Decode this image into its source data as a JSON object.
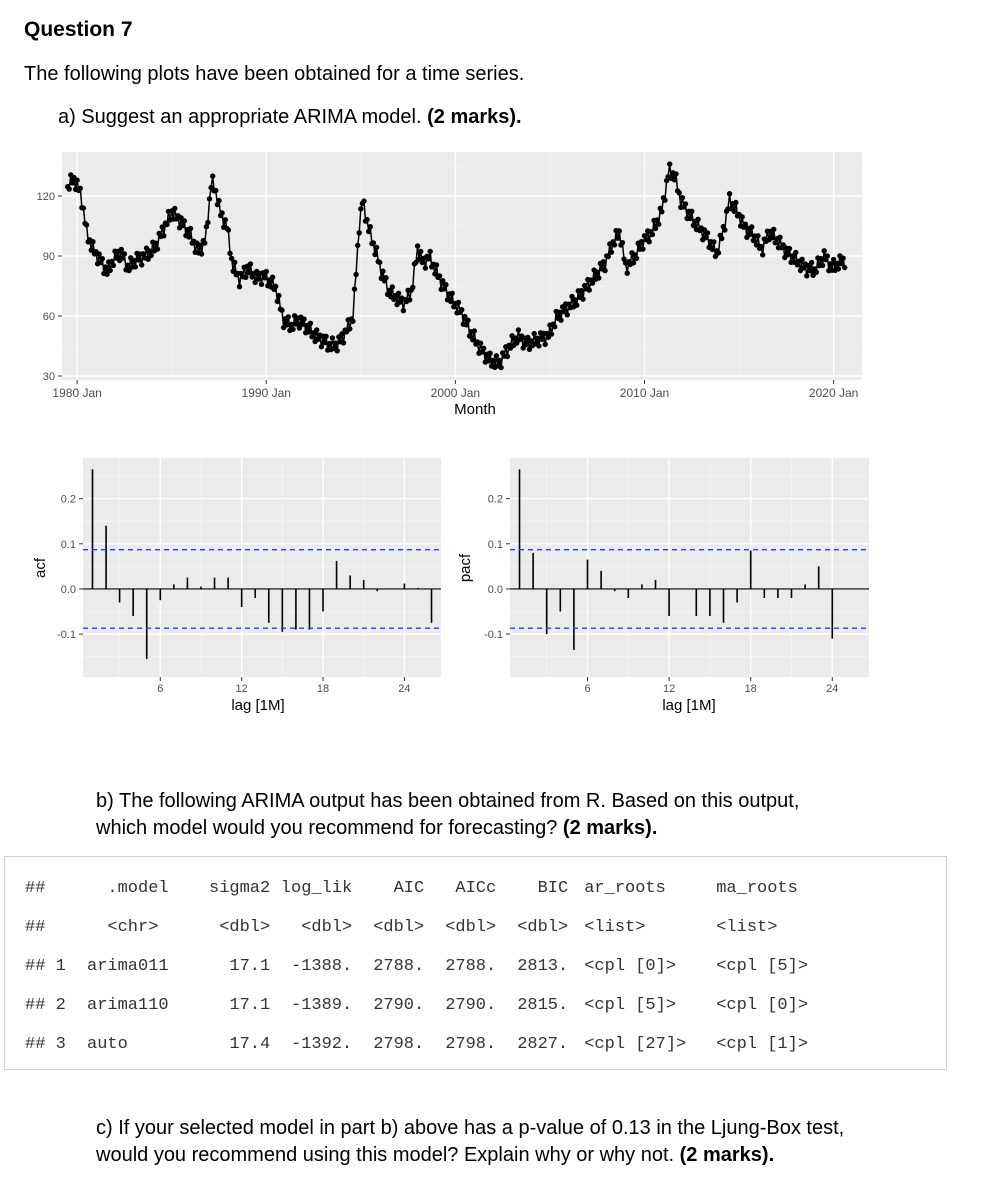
{
  "question": {
    "title": "Question 7",
    "intro": "The following plots have been obtained for a time series.",
    "part_a": {
      "prefix": "a)  Suggest an appropriate ARIMA model. ",
      "marks": "(2 marks)",
      "suffix": "."
    },
    "part_b": {
      "line1": "b) The following ARIMA output has been obtained from R. Based on this output,",
      "line2_text": "which model would you recommend for forecasting? ",
      "line2_marks": "(2 marks)",
      "line2_suffix": "."
    },
    "part_c": {
      "line1": "c) If your selected model in part b) above has a p-value of 0.13 in the Ljung-Box test,",
      "line2_text": "would you recommend using this model? Explain why or why not. ",
      "line2_marks": "(2 marks)",
      "line2_suffix": "."
    }
  },
  "r_output": {
    "rows": [
      [
        "##",
        "  .model",
        "sigma2",
        "log_lik",
        "AIC",
        "AICc",
        "BIC",
        "ar_roots",
        "ma_roots"
      ],
      [
        "##",
        "  <chr>",
        "<dbl>",
        "<dbl>",
        "<dbl>",
        "<dbl>",
        "<dbl>",
        "<list>",
        "<list>"
      ],
      [
        "## 1",
        "arima011",
        "17.1",
        "-1388.",
        "2788.",
        "2788.",
        "2813.",
        "<cpl [0]>",
        "<cpl [5]>"
      ],
      [
        "## 2",
        "arima110",
        "17.1",
        "-1389.",
        "2790.",
        "2790.",
        "2815.",
        "<cpl [5]>",
        "<cpl [0]>"
      ],
      [
        "## 3",
        "auto",
        "17.4",
        "-1392.",
        "2798.",
        "2798.",
        "2827.",
        "<cpl [27]>",
        "<cpl [1]>"
      ]
    ]
  },
  "chart_data": [
    {
      "type": "line",
      "xlabel": "Month",
      "ylabel": "",
      "x_ticks": [
        "1980 Jan",
        "1990 Jan",
        "2000 Jan",
        "2010 Jan",
        "2020 Jan"
      ],
      "y_ticks": [
        30,
        60,
        90,
        120
      ],
      "ylim": [
        28,
        142
      ],
      "xlim": [
        1979.2,
        2021.5
      ],
      "grid": true,
      "markers": true,
      "series_anchors": [
        [
          1979.5,
          124
        ],
        [
          1979.8,
          129
        ],
        [
          1980.2,
          121
        ],
        [
          1980.5,
          102
        ],
        [
          1980.8,
          94
        ],
        [
          1981.2,
          88
        ],
        [
          1981.6,
          82
        ],
        [
          1981.9,
          88
        ],
        [
          1982.3,
          92
        ],
        [
          1982.7,
          84
        ],
        [
          1983.1,
          88
        ],
        [
          1983.6,
          90
        ],
        [
          1984.1,
          94
        ],
        [
          1984.6,
          104
        ],
        [
          1985.0,
          112
        ],
        [
          1985.5,
          107
        ],
        [
          1986.0,
          100
        ],
        [
          1986.4,
          92
        ],
        [
          1986.8,
          98
        ],
        [
          1987.1,
          128
        ],
        [
          1987.4,
          120
        ],
        [
          1987.6,
          110
        ],
        [
          1987.9,
          106
        ],
        [
          1988.2,
          86
        ],
        [
          1988.6,
          78
        ],
        [
          1989.0,
          84
        ],
        [
          1989.5,
          79
        ],
        [
          1989.9,
          80
        ],
        [
          1990.2,
          77
        ],
        [
          1990.5,
          74
        ],
        [
          1990.9,
          58
        ],
        [
          1991.3,
          55
        ],
        [
          1991.7,
          58
        ],
        [
          1992.1,
          55
        ],
        [
          1992.6,
          50
        ],
        [
          1993.0,
          48
        ],
        [
          1993.4,
          45
        ],
        [
          1993.8,
          46
        ],
        [
          1994.2,
          52
        ],
        [
          1994.6,
          60
        ],
        [
          1994.9,
          104
        ],
        [
          1995.1,
          118
        ],
        [
          1995.4,
          104
        ],
        [
          1995.8,
          92
        ],
        [
          1996.1,
          82
        ],
        [
          1996.5,
          72
        ],
        [
          1996.9,
          69
        ],
        [
          1997.3,
          66
        ],
        [
          1997.7,
          73
        ],
        [
          1998.0,
          94
        ],
        [
          1998.3,
          86
        ],
        [
          1998.6,
          90
        ],
        [
          1998.9,
          84
        ],
        [
          1999.3,
          76
        ],
        [
          1999.8,
          68
        ],
        [
          2000.3,
          62
        ],
        [
          2000.8,
          52
        ],
        [
          2001.3,
          44
        ],
        [
          2001.8,
          38
        ],
        [
          2002.3,
          36
        ],
        [
          2002.8,
          44
        ],
        [
          2003.3,
          50
        ],
        [
          2003.8,
          46
        ],
        [
          2004.3,
          48
        ],
        [
          2004.9,
          50
        ],
        [
          2005.4,
          60
        ],
        [
          2005.9,
          64
        ],
        [
          2006.4,
          68
        ],
        [
          2006.9,
          74
        ],
        [
          2007.4,
          80
        ],
        [
          2007.9,
          86
        ],
        [
          2008.3,
          96
        ],
        [
          2008.7,
          102
        ],
        [
          2009.0,
          84
        ],
        [
          2009.5,
          90
        ],
        [
          2009.9,
          97
        ],
        [
          2010.4,
          102
        ],
        [
          2010.9,
          112
        ],
        [
          2011.3,
          133
        ],
        [
          2011.6,
          130
        ],
        [
          2011.9,
          118
        ],
        [
          2012.4,
          110
        ],
        [
          2012.9,
          104
        ],
        [
          2013.4,
          98
        ],
        [
          2013.8,
          91
        ],
        [
          2014.1,
          100
        ],
        [
          2014.5,
          118
        ],
        [
          2014.9,
          112
        ],
        [
          2015.3,
          104
        ],
        [
          2015.8,
          100
        ],
        [
          2016.2,
          93
        ],
        [
          2016.6,
          102
        ],
        [
          2017.0,
          98
        ],
        [
          2017.5,
          92
        ],
        [
          2018.0,
          88
        ],
        [
          2018.5,
          84
        ],
        [
          2019.0,
          83
        ],
        [
          2019.5,
          90
        ],
        [
          2019.9,
          84
        ],
        [
          2020.2,
          86
        ],
        [
          2020.6,
          88
        ]
      ]
    },
    {
      "type": "bar",
      "xlabel": "lag [1M]",
      "ylabel": "acf",
      "x_ticks": [
        6,
        12,
        18,
        24
      ],
      "y_ticks": [
        -0.1,
        0.0,
        0.1,
        0.2
      ],
      "ylim": [
        -0.195,
        0.29
      ],
      "confidence_bound": 0.087,
      "lags": [
        1,
        2,
        3,
        4,
        5,
        6,
        7,
        8,
        9,
        10,
        11,
        12,
        13,
        14,
        15,
        16,
        17,
        18,
        19,
        20,
        21,
        22,
        23,
        24,
        25,
        26
      ],
      "values": [
        0.265,
        0.14,
        -0.03,
        -0.06,
        -0.155,
        -0.025,
        0.01,
        0.025,
        0.005,
        0.025,
        0.025,
        -0.04,
        -0.02,
        -0.075,
        -0.095,
        -0.09,
        -0.09,
        -0.05,
        0.062,
        0.03,
        0.02,
        -0.005,
        0.0,
        0.012,
        0.002,
        -0.075
      ]
    },
    {
      "type": "bar",
      "xlabel": "lag [1M]",
      "ylabel": "pacf",
      "x_ticks": [
        6,
        12,
        18,
        24
      ],
      "y_ticks": [
        -0.1,
        0.0,
        0.1,
        0.2
      ],
      "ylim": [
        -0.195,
        0.29
      ],
      "confidence_bound": 0.087,
      "lags": [
        1,
        2,
        3,
        4,
        5,
        6,
        7,
        8,
        9,
        10,
        11,
        12,
        13,
        14,
        15,
        16,
        17,
        18,
        19,
        20,
        21,
        22,
        23,
        24,
        25,
        26
      ],
      "values": [
        0.265,
        0.08,
        -0.1,
        -0.05,
        -0.135,
        0.065,
        0.04,
        -0.005,
        -0.02,
        0.01,
        0.02,
        -0.06,
        0.0,
        -0.06,
        -0.06,
        -0.075,
        -0.03,
        0.085,
        -0.02,
        -0.02,
        -0.02,
        0.01,
        0.05,
        -0.11,
        0.0,
        0.0
      ]
    }
  ]
}
